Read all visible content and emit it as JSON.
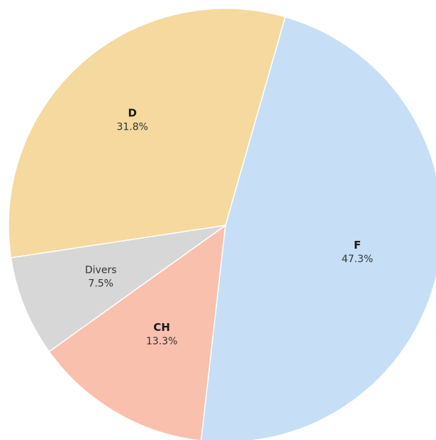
{
  "chart_data": {
    "type": "pie",
    "title": "",
    "series": [
      {
        "name": "F",
        "value": 47.3,
        "label": "47.3%",
        "color": "#c6dff6",
        "bold": true
      },
      {
        "name": "CH",
        "value": 13.3,
        "label": "13.3%",
        "color": "#f9c0ae",
        "bold": true
      },
      {
        "name": "Divers",
        "value": 7.5,
        "label": "7.5%",
        "color": "#d7d7d7",
        "bold": false
      },
      {
        "name": "D",
        "value": 31.8,
        "label": "31.8%",
        "color": "#f5d99e",
        "bold": true
      }
    ],
    "start_angle_deg": 16,
    "direction": "clockwise",
    "legend": "none"
  }
}
